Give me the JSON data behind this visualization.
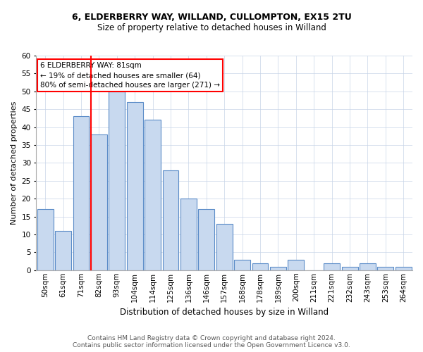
{
  "title_line1": "6, ELDERBERRY WAY, WILLAND, CULLOMPTON, EX15 2TU",
  "title_line2": "Size of property relative to detached houses in Willand",
  "xlabel": "Distribution of detached houses by size in Willand",
  "ylabel": "Number of detached properties",
  "categories": [
    "50sqm",
    "61sqm",
    "71sqm",
    "82sqm",
    "93sqm",
    "104sqm",
    "114sqm",
    "125sqm",
    "136sqm",
    "146sqm",
    "157sqm",
    "168sqm",
    "178sqm",
    "189sqm",
    "200sqm",
    "211sqm",
    "221sqm",
    "232sqm",
    "243sqm",
    "253sqm",
    "264sqm"
  ],
  "values": [
    17,
    11,
    43,
    38,
    50,
    47,
    42,
    28,
    20,
    17,
    13,
    3,
    2,
    1,
    3,
    0,
    2,
    1,
    2,
    1,
    1
  ],
  "bar_color": "#c8d9ef",
  "bar_edge_color": "#5b8cc8",
  "red_line_index": 3,
  "annotation_line1": "6 ELDERBERRY WAY: 81sqm",
  "annotation_line2": "← 19% of detached houses are smaller (64)",
  "annotation_line3": "80% of semi-detached houses are larger (271) →",
  "ylim": [
    0,
    60
  ],
  "yticks": [
    0,
    5,
    10,
    15,
    20,
    25,
    30,
    35,
    40,
    45,
    50,
    55,
    60
  ],
  "footer_line1": "Contains HM Land Registry data © Crown copyright and database right 2024.",
  "footer_line2": "Contains public sector information licensed under the Open Government Licence v3.0.",
  "background_color": "#ffffff",
  "grid_color": "#c8d4e8",
  "title_fontsize": 9,
  "subtitle_fontsize": 8.5,
  "xlabel_fontsize": 8.5,
  "ylabel_fontsize": 8,
  "tick_fontsize": 7.5,
  "footer_fontsize": 6.5,
  "annotation_fontsize": 7.5
}
